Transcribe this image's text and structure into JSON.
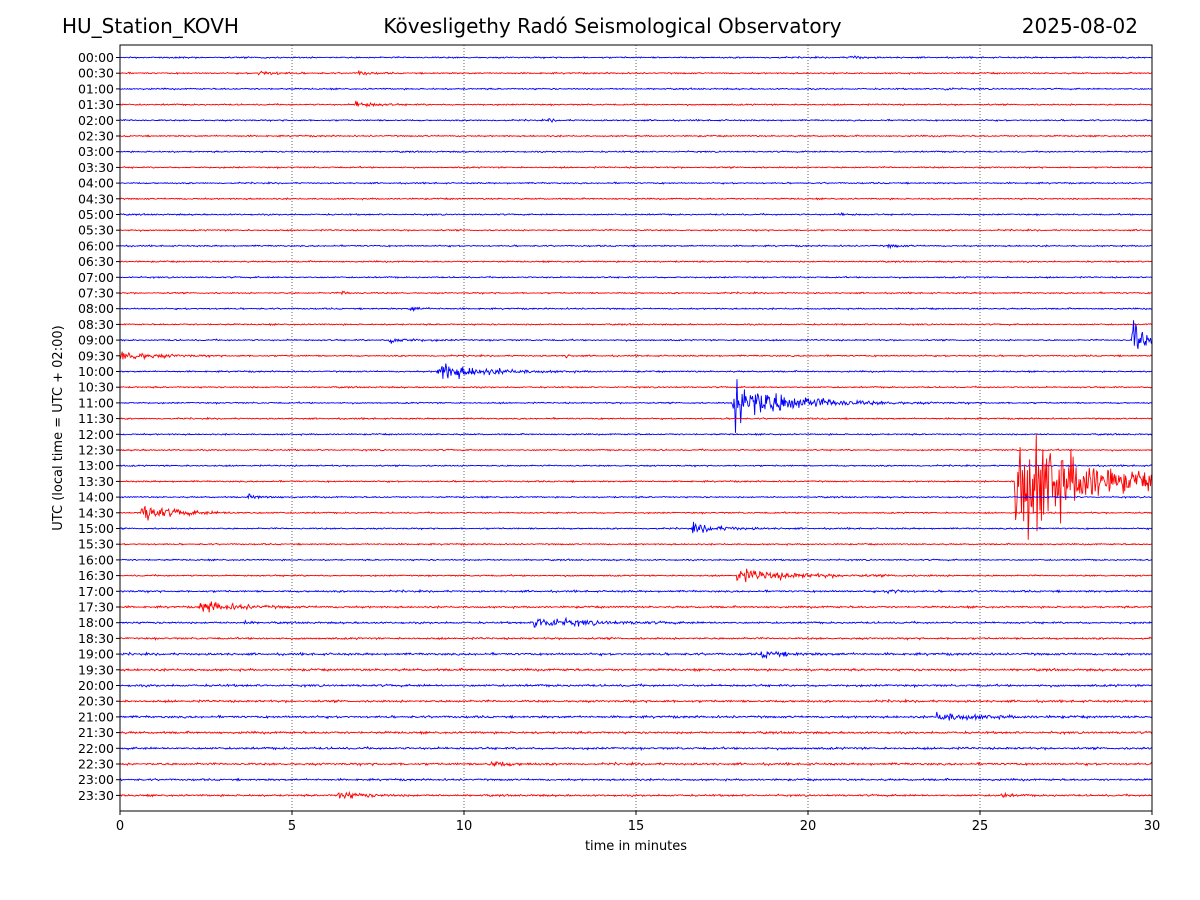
{
  "header": {
    "station": "HU_Station_KOVH",
    "title": "Kövesligethy Radó Seismological Observatory",
    "date": "2025-08-02"
  },
  "chart_data": {
    "type": "line",
    "subtype": "helicorder",
    "xlabel": "time in minutes",
    "ylabel": "UTC (local time = UTC + 02:00)",
    "xlim": [
      0,
      30
    ],
    "xticks": [
      0,
      5,
      10,
      15,
      20,
      25,
      30
    ],
    "vertical_grid": "dotted at each x tick",
    "colors": {
      "even_rows": "#0000ff",
      "odd_rows": "#ff0000"
    },
    "rows": [
      "00:00",
      "00:30",
      "01:00",
      "01:30",
      "02:00",
      "02:30",
      "03:00",
      "03:30",
      "04:00",
      "04:30",
      "05:00",
      "05:30",
      "06:00",
      "06:30",
      "07:00",
      "07:30",
      "08:00",
      "08:30",
      "09:00",
      "09:30",
      "10:00",
      "10:30",
      "11:00",
      "11:30",
      "12:00",
      "12:30",
      "13:00",
      "13:30",
      "14:00",
      "14:30",
      "15:00",
      "15:30",
      "16:00",
      "16:30",
      "17:00",
      "17:30",
      "18:00",
      "18:30",
      "19:00",
      "19:30",
      "20:00",
      "20:30",
      "21:00",
      "21:30",
      "22:00",
      "22:30",
      "23:00",
      "23:30"
    ],
    "background_noise": [
      1,
      1,
      1,
      1,
      1,
      1,
      1,
      1,
      1,
      1,
      1,
      1,
      1,
      1,
      1,
      1,
      1,
      1,
      1,
      1,
      1,
      1,
      1,
      1,
      1,
      1,
      1,
      1,
      1,
      1,
      1,
      1,
      1,
      1,
      1.3,
      1.3,
      1.3,
      1.3,
      1.5,
      1.5,
      1.5,
      1.5,
      1.5,
      1.5,
      1.5,
      1.5,
      1.3,
      1.3
    ],
    "events": [
      {
        "row": "00:00",
        "t": 4.1,
        "amp": 3,
        "dur": 0.2
      },
      {
        "row": "00:00",
        "t": 21.2,
        "amp": 3,
        "dur": 0.7
      },
      {
        "row": "00:30",
        "t": 4.0,
        "amp": 4,
        "dur": 1.0
      },
      {
        "row": "00:30",
        "t": 6.9,
        "amp": 4,
        "dur": 0.6
      },
      {
        "row": "01:00",
        "t": 23.9,
        "amp": 4,
        "dur": 0.4
      },
      {
        "row": "01:30",
        "t": 6.8,
        "amp": 6,
        "dur": 1.0
      },
      {
        "row": "02:00",
        "t": 12.4,
        "amp": 3,
        "dur": 0.4
      },
      {
        "row": "05:00",
        "t": 20.8,
        "amp": 3,
        "dur": 0.6
      },
      {
        "row": "06:00",
        "t": 22.3,
        "amp": 3,
        "dur": 0.6
      },
      {
        "row": "07:30",
        "t": 6.4,
        "amp": 3,
        "dur": 0.5
      },
      {
        "row": "08:00",
        "t": 8.4,
        "amp": 4,
        "dur": 0.6
      },
      {
        "row": "09:00",
        "t": 7.8,
        "amp": 5,
        "dur": 1.2
      },
      {
        "row": "09:00",
        "t": 29.4,
        "amp": 40,
        "dur": 0.6
      },
      {
        "row": "09:30",
        "t": 0.0,
        "amp": 7,
        "dur": 2.0
      },
      {
        "row": "09:30",
        "t": 12.9,
        "amp": 4,
        "dur": 0.3
      },
      {
        "row": "10:00",
        "t": 9.2,
        "amp": 15,
        "dur": 2.5
      },
      {
        "row": "11:00",
        "t": 17.8,
        "amp": 38,
        "dur": 3.0
      },
      {
        "row": "13:30",
        "t": 26.0,
        "amp": 95,
        "dur": 4.0
      },
      {
        "row": "14:00",
        "t": 3.7,
        "amp": 3,
        "dur": 1.0
      },
      {
        "row": "14:30",
        "t": 0.6,
        "amp": 12,
        "dur": 2.0
      },
      {
        "row": "15:00",
        "t": 16.6,
        "amp": 7,
        "dur": 1.8
      },
      {
        "row": "16:30",
        "t": 17.9,
        "amp": 9,
        "dur": 3.5
      },
      {
        "row": "17:00",
        "t": 22.3,
        "amp": 6,
        "dur": 0.6
      },
      {
        "row": "17:30",
        "t": 2.3,
        "amp": 9,
        "dur": 2.0
      },
      {
        "row": "18:00",
        "t": 3.6,
        "amp": 4,
        "dur": 0.3
      },
      {
        "row": "18:00",
        "t": 12.0,
        "amp": 8,
        "dur": 3.0
      },
      {
        "row": "19:00",
        "t": 18.6,
        "amp": 5,
        "dur": 1.5
      },
      {
        "row": "21:00",
        "t": 23.7,
        "amp": 6,
        "dur": 2.5
      },
      {
        "row": "22:30",
        "t": 10.7,
        "amp": 5,
        "dur": 1.0
      },
      {
        "row": "23:30",
        "t": 6.3,
        "amp": 6,
        "dur": 1.5
      },
      {
        "row": "23:30",
        "t": 25.6,
        "amp": 4,
        "dur": 0.5
      }
    ]
  }
}
